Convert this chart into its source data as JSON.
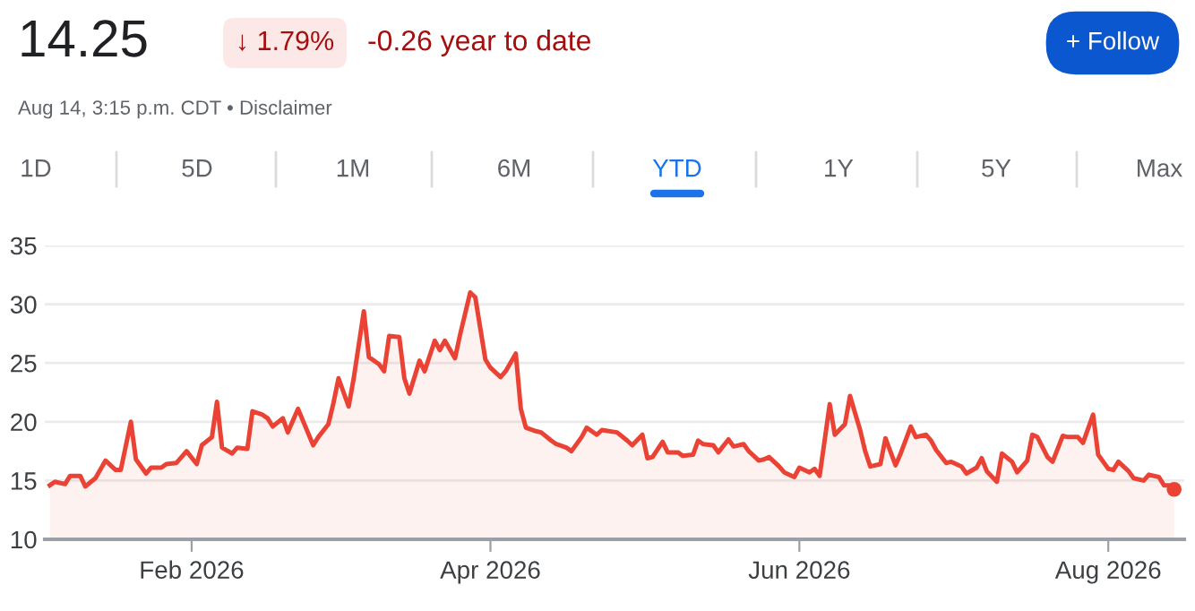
{
  "chart_data": {
    "type": "area",
    "title": "14.25",
    "subtitle": "Aug 14, 3:15 p.m. CDT • Disclaimer",
    "annotations": [
      "↓ 1.79%",
      "-0.26 year to date",
      "+ Follow",
      "1D",
      "5D",
      "1M",
      "6M",
      "YTD",
      "1Y",
      "5Y",
      "Max"
    ],
    "xlim": [
      "2026-01-03",
      "2026-08-16"
    ],
    "ylim": [
      10,
      35
    ],
    "yticks": [
      10,
      15,
      20,
      25,
      30,
      35
    ],
    "xticks": [
      {
        "value": "2026-02-01",
        "label": "Feb 2026"
      },
      {
        "value": "2026-04-01",
        "label": "Apr 2026"
      },
      {
        "value": "2026-06-01",
        "label": "Jun 2026"
      },
      {
        "value": "2026-08-01",
        "label": "Aug 2026"
      }
    ],
    "grid": "y",
    "legend": false,
    "series": [
      {
        "color": "#ea4335",
        "x": [
          "2026-01-04",
          "2026-01-05",
          "2026-01-07",
          "2026-01-08",
          "2026-01-10",
          "2026-01-11",
          "2026-01-13",
          "2026-01-15",
          "2026-01-17",
          "2026-01-18",
          "2026-01-20",
          "2026-01-21",
          "2026-01-23",
          "2026-01-24",
          "2026-01-26",
          "2026-01-27",
          "2026-01-29",
          "2026-01-31",
          "2026-02-02",
          "2026-02-03",
          "2026-02-05",
          "2026-02-06",
          "2026-02-07",
          "2026-02-09",
          "2026-02-10",
          "2026-02-12",
          "2026-02-13",
          "2026-02-15",
          "2026-02-16",
          "2026-02-17",
          "2026-02-19",
          "2026-02-20",
          "2026-02-22",
          "2026-02-25",
          "2026-02-26",
          "2026-02-28",
          "2026-03-01",
          "2026-03-02",
          "2026-03-04",
          "2026-03-05",
          "2026-03-07",
          "2026-03-08",
          "2026-03-10",
          "2026-03-11",
          "2026-03-12",
          "2026-03-14",
          "2026-03-15",
          "2026-03-16",
          "2026-03-18",
          "2026-03-19",
          "2026-03-21",
          "2026-03-22",
          "2026-03-23",
          "2026-03-25",
          "2026-03-26",
          "2026-03-28",
          "2026-03-29",
          "2026-03-31",
          "2026-04-01",
          "2026-04-03",
          "2026-04-04",
          "2026-04-06",
          "2026-04-07",
          "2026-04-08",
          "2026-04-10",
          "2026-04-11",
          "2026-04-13",
          "2026-04-14",
          "2026-04-16",
          "2026-04-17",
          "2026-04-19",
          "2026-04-20",
          "2026-04-22",
          "2026-04-23",
          "2026-04-26",
          "2026-04-28",
          "2026-04-29",
          "2026-05-01",
          "2026-05-02",
          "2026-05-03",
          "2026-05-05",
          "2026-05-06",
          "2026-05-08",
          "2026-05-09",
          "2026-05-11",
          "2026-05-12",
          "2026-05-13",
          "2026-05-15",
          "2026-05-16",
          "2026-05-18",
          "2026-05-19",
          "2026-05-21",
          "2026-05-22",
          "2026-05-24",
          "2026-05-25",
          "2026-05-26",
          "2026-05-28",
          "2026-05-29",
          "2026-05-31",
          "2026-06-01",
          "2026-06-03",
          "2026-06-04",
          "2026-06-05",
          "2026-06-07",
          "2026-06-08",
          "2026-06-10",
          "2026-06-11",
          "2026-06-13",
          "2026-06-14",
          "2026-06-15",
          "2026-06-17",
          "2026-06-18",
          "2026-06-20",
          "2026-06-21",
          "2026-06-23",
          "2026-06-24",
          "2026-06-26",
          "2026-06-27",
          "2026-06-28",
          "2026-06-30",
          "2026-07-01",
          "2026-07-03",
          "2026-07-04",
          "2026-07-06",
          "2026-07-07",
          "2026-07-08",
          "2026-07-10",
          "2026-07-11",
          "2026-07-13",
          "2026-07-14",
          "2026-07-16",
          "2026-07-17",
          "2026-07-18",
          "2026-07-20",
          "2026-07-21",
          "2026-07-23",
          "2026-07-24",
          "2026-07-26",
          "2026-07-27",
          "2026-07-29",
          "2026-07-30",
          "2026-08-01",
          "2026-08-02",
          "2026-08-03",
          "2026-08-05",
          "2026-08-06",
          "2026-08-08",
          "2026-08-09",
          "2026-08-11",
          "2026-08-12",
          "2026-08-13",
          "2026-08-14"
        ],
        "values": [
          14.6,
          14.9,
          14.7,
          15.4,
          15.4,
          14.5,
          15.2,
          16.7,
          15.9,
          15.9,
          20.0,
          16.8,
          15.6,
          16.1,
          16.1,
          16.4,
          16.5,
          17.5,
          16.4,
          18.0,
          18.7,
          21.7,
          17.8,
          17.3,
          17.8,
          17.7,
          20.9,
          20.6,
          20.3,
          19.6,
          20.3,
          19.1,
          21.1,
          18.0,
          18.7,
          19.8,
          21.6,
          23.7,
          21.3,
          23.7,
          29.4,
          25.5,
          24.9,
          24.3,
          27.3,
          27.2,
          23.7,
          22.4,
          25.2,
          24.3,
          26.9,
          26.1,
          26.9,
          25.4,
          27.4,
          31.0,
          30.6,
          25.3,
          24.6,
          23.8,
          24.3,
          25.8,
          21.1,
          19.5,
          19.2,
          19.1,
          18.4,
          18.1,
          17.8,
          17.5,
          18.7,
          19.5,
          18.9,
          19.3,
          19.1,
          18.4,
          18.0,
          18.9,
          16.9,
          17.0,
          18.3,
          17.4,
          17.4,
          17.1,
          17.2,
          18.4,
          18.1,
          18.0,
          17.4,
          18.5,
          17.9,
          18.1,
          17.5,
          16.7,
          16.8,
          17.0,
          16.2,
          15.7,
          15.3,
          16.1,
          15.7,
          16.0,
          15.4,
          21.5,
          18.9,
          19.8,
          22.2,
          19.3,
          17.5,
          16.2,
          16.4,
          18.6,
          16.3,
          17.3,
          19.6,
          18.7,
          18.9,
          18.4,
          17.6,
          16.5,
          16.6,
          16.2,
          15.6,
          16.1,
          16.9,
          15.8,
          14.9,
          17.3,
          16.6,
          15.7,
          16.7,
          18.9,
          18.7,
          17.0,
          16.6,
          18.8,
          18.7,
          18.7,
          18.2,
          20.6,
          17.2,
          16.0,
          15.9,
          16.6,
          15.8,
          15.2,
          15.0,
          15.5,
          15.3,
          14.6,
          14.6,
          14.25
        ]
      }
    ]
  }
}
